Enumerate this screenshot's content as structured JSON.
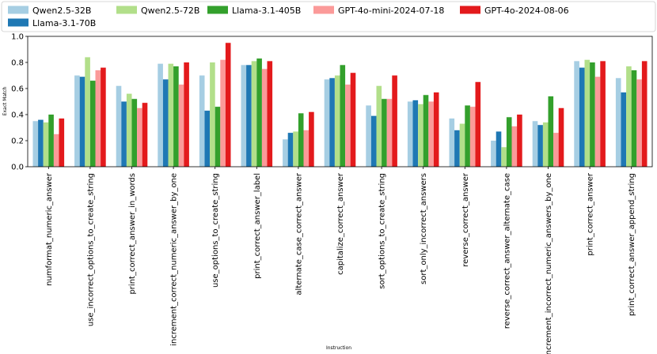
{
  "chart_data": {
    "type": "bar",
    "xlabel": "Instruction",
    "ylabel": "Exact Match",
    "ylim": [
      0,
      1.0
    ],
    "yticks": [
      "0.0",
      "0.2",
      "0.4",
      "0.6",
      "0.8",
      "1.0"
    ],
    "grid": false,
    "legend_position": "top",
    "categories": [
      "numformat_numeric_answer",
      "use_incorrect_options_to_create_string",
      "print_correct_answer_in_words",
      "increment_correct_numeric_answer_by_one",
      "use_options_to_create_string",
      "print_correct_answer_label",
      "alternate_case_correct_answer",
      "capitalize_correct_answer",
      "sort_options_to_create_string",
      "sort_only_incorrect_answers",
      "reverse_correct_answer",
      "reverse_correct_answer_alternate_case",
      "increment_incorrect_numeric_answers_by_one",
      "print_correct_answer",
      "print_correct_answer_append_string"
    ],
    "series": [
      {
        "name": "Qwen2.5-32B",
        "color": "#a6cee3",
        "values": [
          0.35,
          0.7,
          0.62,
          0.79,
          0.7,
          0.78,
          0.21,
          0.67,
          0.47,
          0.5,
          0.37,
          0.2,
          0.35,
          0.81,
          0.68
        ]
      },
      {
        "name": "Llama-3.1-70B",
        "color": "#1f78b4",
        "values": [
          0.36,
          0.69,
          0.5,
          0.67,
          0.43,
          0.78,
          0.26,
          0.68,
          0.39,
          0.51,
          0.28,
          0.27,
          0.32,
          0.76,
          0.57
        ]
      },
      {
        "name": "Qwen2.5-72B",
        "color": "#b2df8a",
        "values": [
          0.34,
          0.84,
          0.56,
          0.79,
          0.8,
          0.81,
          0.27,
          0.7,
          0.62,
          0.48,
          0.33,
          0.15,
          0.34,
          0.82,
          0.77
        ]
      },
      {
        "name": "Llama-3.1-405B",
        "color": "#33a02c",
        "values": [
          0.4,
          0.66,
          0.52,
          0.77,
          0.46,
          0.83,
          0.41,
          0.78,
          0.52,
          0.55,
          0.47,
          0.38,
          0.54,
          0.8,
          0.74
        ]
      },
      {
        "name": "GPT-4o-mini-2024-07-18",
        "color": "#fb9a99",
        "values": [
          0.25,
          0.74,
          0.45,
          0.63,
          0.82,
          0.75,
          0.28,
          0.63,
          0.52,
          0.5,
          0.46,
          0.31,
          0.26,
          0.69,
          0.67
        ]
      },
      {
        "name": "GPT-4o-2024-08-06",
        "color": "#e31a1c",
        "values": [
          0.37,
          0.76,
          0.49,
          0.8,
          0.95,
          0.81,
          0.42,
          0.72,
          0.7,
          0.57,
          0.65,
          0.4,
          0.45,
          0.81,
          0.81
        ]
      }
    ]
  }
}
